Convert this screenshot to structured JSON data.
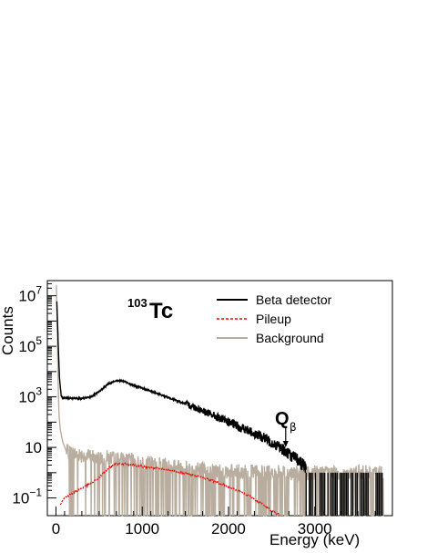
{
  "chart_data": {
    "type": "line",
    "title": "",
    "annotation": {
      "mass": "103",
      "element": "Tc"
    },
    "qbeta": {
      "letter": "Q",
      "subscript": "β",
      "energy_keV": 2663
    },
    "xlabel": "Energy (keV)",
    "ylabel": "Counts",
    "xlim": [
      -100,
      3900
    ],
    "ylim_log10": [
      -1.7,
      7.6
    ],
    "y_scale": "log",
    "x_ticks": [
      {
        "value": 0,
        "label": "0"
      },
      {
        "value": 1000,
        "label": "1000"
      },
      {
        "value": 2000,
        "label": "2000"
      },
      {
        "value": 3000,
        "label": "3000"
      }
    ],
    "y_ticks": [
      {
        "exp": -1,
        "base": "10",
        "sup": "−1"
      },
      {
        "exp": 1,
        "base": "10",
        "sup": ""
      },
      {
        "exp": 3,
        "base": "10",
        "sup": "3"
      },
      {
        "exp": 5,
        "base": "10",
        "sup": "5"
      },
      {
        "exp": 7,
        "base": "10",
        "sup": "7"
      }
    ],
    "legend_position": "top-right",
    "series": [
      {
        "name": "Beta detector",
        "color": "#000000",
        "style": "solid",
        "x": [
          10,
          25,
          40,
          60,
          80,
          120,
          200,
          300,
          400,
          500,
          600,
          700,
          800,
          900,
          1000,
          1200,
          1400,
          1600,
          1800,
          2000,
          2200,
          2400,
          2500,
          2600,
          2700,
          2800,
          2900
        ],
        "log10": [
          6.8,
          5.2,
          3.8,
          3.05,
          2.95,
          2.95,
          2.95,
          2.93,
          3.0,
          3.2,
          3.5,
          3.65,
          3.6,
          3.45,
          3.35,
          3.1,
          2.85,
          2.6,
          2.3,
          2.0,
          1.7,
          1.4,
          1.2,
          1.0,
          0.75,
          0.5,
          0.2
        ]
      },
      {
        "name": "Pileup",
        "color": "#ff0000",
        "style": "dashed",
        "x": [
          50,
          100,
          200,
          300,
          400,
          500,
          600,
          700,
          800,
          1000,
          1200,
          1400,
          1600,
          1800,
          2000,
          2200,
          2400,
          2500,
          2600
        ],
        "log10": [
          -1.25,
          -1.0,
          -0.8,
          -0.6,
          -0.45,
          -0.2,
          0.15,
          0.35,
          0.35,
          0.25,
          0.15,
          0.05,
          -0.1,
          -0.3,
          -0.55,
          -0.85,
          -1.25,
          -1.5,
          -1.7
        ]
      },
      {
        "name": "Background",
        "color": "#b8ad9e",
        "style": "solid",
        "x": [
          5,
          15,
          25,
          35,
          50,
          80,
          120,
          200,
          400,
          600,
          800,
          1000,
          1500,
          2000,
          2500,
          3000,
          3500,
          3800
        ],
        "log10": [
          7.4,
          5.6,
          3.6,
          2.3,
          1.7,
          1.2,
          0.85,
          0.75,
          0.65,
          0.6,
          0.5,
          0.4,
          0.2,
          0.05,
          0.0,
          0.0,
          0.0,
          0.0
        ]
      }
    ]
  }
}
